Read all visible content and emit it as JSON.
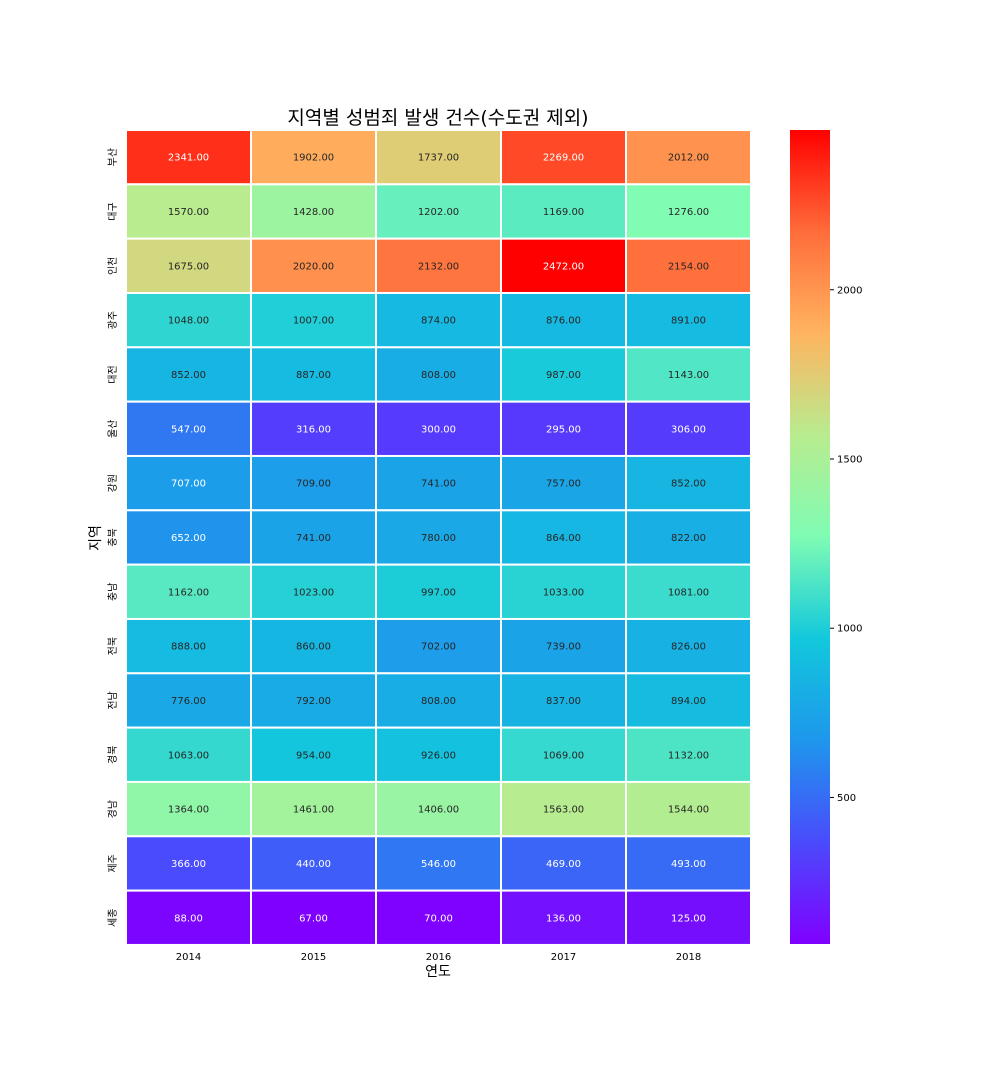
{
  "chart_data": {
    "type": "heatmap",
    "title": "지역별 성범죄 발생 건수(수도권 제외)",
    "xlabel": "연도",
    "ylabel": "지역",
    "x": [
      "2014",
      "2015",
      "2016",
      "2017",
      "2018"
    ],
    "y": [
      "부산",
      "대구",
      "인천",
      "광주",
      "대전",
      "울산",
      "강원",
      "충북",
      "충남",
      "전북",
      "전남",
      "경북",
      "경남",
      "제주",
      "세종"
    ],
    "values": [
      [
        2341,
        1902,
        1737,
        2269,
        2012
      ],
      [
        1570,
        1428,
        1202,
        1169,
        1276
      ],
      [
        1675,
        2020,
        2132,
        2472,
        2154
      ],
      [
        1048,
        1007,
        874,
        876,
        891
      ],
      [
        852,
        887,
        808,
        987,
        1143
      ],
      [
        547,
        316,
        300,
        295,
        306
      ],
      [
        707,
        709,
        741,
        757,
        852
      ],
      [
        652,
        741,
        780,
        864,
        822
      ],
      [
        1162,
        1023,
        997,
        1033,
        1081
      ],
      [
        888,
        860,
        702,
        739,
        826
      ],
      [
        776,
        792,
        808,
        837,
        894
      ],
      [
        1063,
        954,
        926,
        1069,
        1132
      ],
      [
        1364,
        1461,
        1406,
        1563,
        1544
      ],
      [
        366,
        440,
        546,
        469,
        493
      ],
      [
        88,
        67,
        70,
        136,
        125
      ]
    ],
    "annotation_format": "fixed2",
    "colormap": "rainbow",
    "colorbar": {
      "ticks": [
        500,
        1000,
        1500,
        2000
      ],
      "range": [
        67,
        2472
      ]
    },
    "cell_separator_color": "#ffffff",
    "grid": false,
    "legend": "colorbar-right"
  }
}
